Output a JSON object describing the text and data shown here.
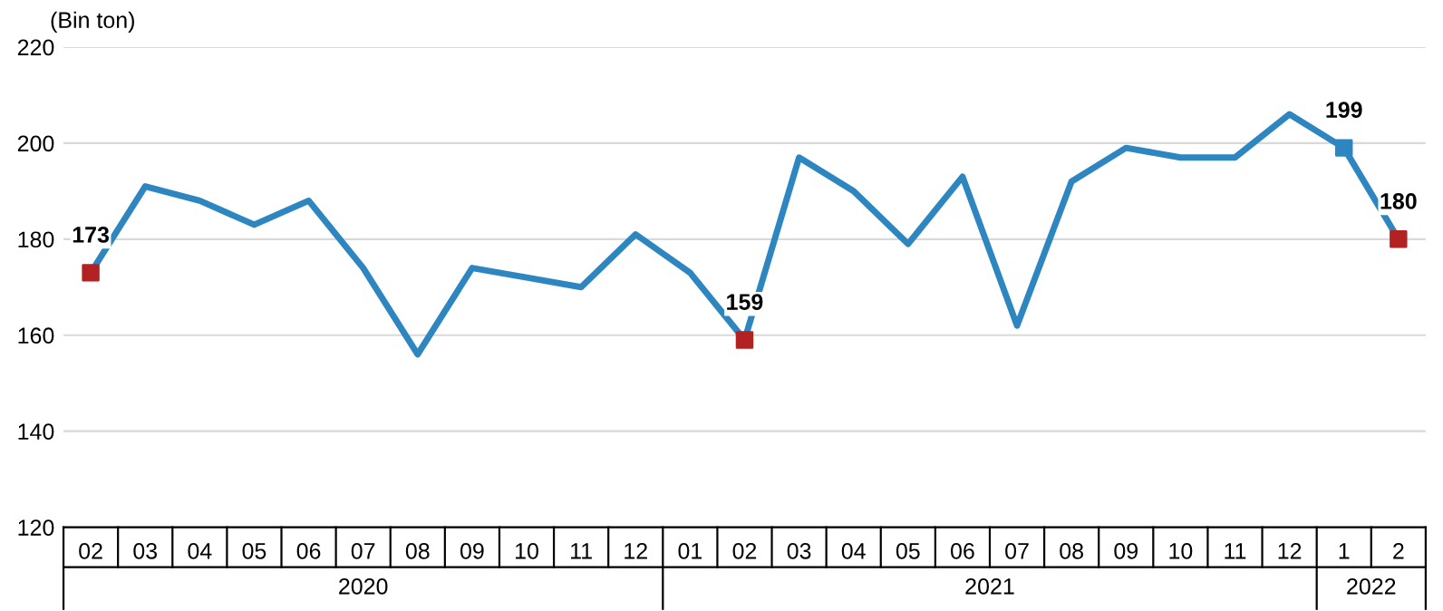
{
  "chart_data": {
    "type": "line",
    "ylabel": "(Bin ton)",
    "categories": [
      "02",
      "03",
      "04",
      "05",
      "06",
      "07",
      "08",
      "09",
      "10",
      "11",
      "12",
      "01",
      "02",
      "03",
      "04",
      "05",
      "06",
      "07",
      "08",
      "09",
      "10",
      "11",
      "12",
      "1",
      "2"
    ],
    "series": [
      {
        "color": "#2e86c1",
        "values": [
          173,
          191,
          188,
          183,
          188,
          174,
          156,
          174,
          172,
          170,
          181,
          173,
          159,
          197,
          190,
          179,
          193,
          162,
          192,
          199,
          197,
          197,
          206,
          199,
          180
        ],
        "colors": [
          "#b22222",
          null,
          null,
          null,
          null,
          null,
          null,
          null,
          null,
          null,
          null,
          null,
          "#b22222",
          null,
          null,
          null,
          null,
          null,
          null,
          null,
          null,
          null,
          null,
          "#2e86c1",
          "#b22222"
        ],
        "value_labels": [
          "173",
          null,
          null,
          null,
          null,
          null,
          null,
          null,
          null,
          null,
          null,
          null,
          "159",
          null,
          null,
          null,
          null,
          null,
          null,
          null,
          null,
          null,
          null,
          "199",
          "180"
        ]
      }
    ],
    "annotations": [
      "2020",
      "2021",
      "2022"
    ],
    "ylim": [
      120,
      220
    ],
    "yticks": [
      120,
      140,
      160,
      180,
      200,
      220
    ],
    "grid": "y",
    "line_style": "solid"
  }
}
